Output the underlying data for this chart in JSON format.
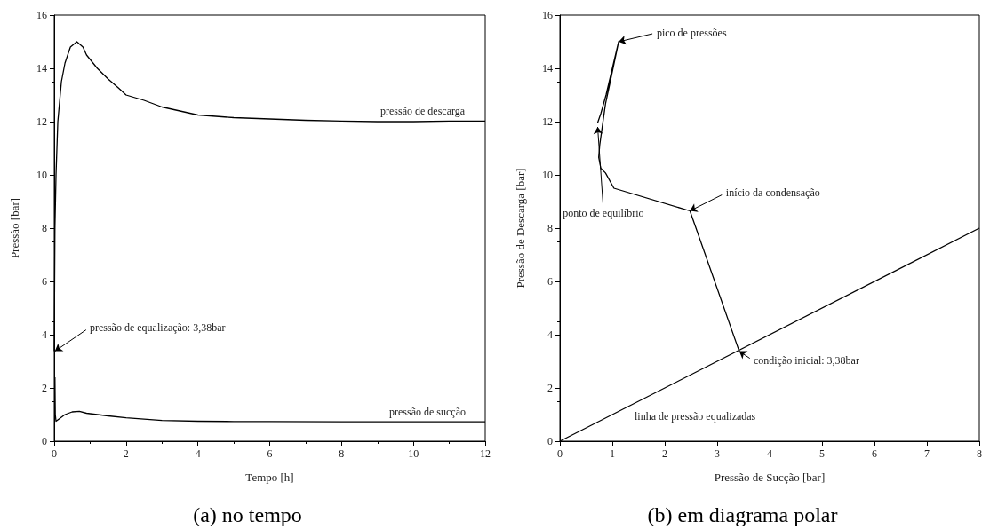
{
  "chart_data": [
    {
      "type": "line",
      "title": "(a) no tempo",
      "xlabel": "Tempo [h]",
      "ylabel": "Pressão [bar]",
      "xlim": [
        0,
        12
      ],
      "ylim": [
        0,
        16
      ],
      "xticks": [
        0,
        2,
        4,
        6,
        8,
        10,
        12
      ],
      "yticks": [
        0,
        2,
        4,
        6,
        8,
        10,
        12,
        14,
        16
      ],
      "marker": "none",
      "line_style": "solid",
      "series": [
        {
          "name": "pressão de descarga",
          "color": "#000000",
          "x": [
            0,
            0.02,
            0.05,
            0.1,
            0.2,
            0.3,
            0.45,
            0.63,
            0.8,
            0.9,
            1.2,
            1.5,
            1.8,
            2.0,
            2.5,
            3.0,
            3.5,
            4.0,
            5,
            6,
            7,
            8,
            9,
            10,
            11,
            12
          ],
          "values": [
            3.38,
            8,
            10,
            12,
            13.5,
            14.2,
            14.8,
            15.0,
            14.8,
            14.5,
            14.0,
            13.6,
            13.25,
            13.0,
            12.8,
            12.55,
            12.4,
            12.25,
            12.15,
            12.1,
            12.05,
            12.02,
            12.0,
            12.0,
            12.02,
            12.02
          ]
        },
        {
          "name": "pressão de sucção",
          "color": "#000000",
          "x": [
            0.02,
            0.03,
            0.05,
            0.15,
            0.3,
            0.5,
            0.7,
            0.9,
            1.2,
            1.5,
            2,
            2.5,
            3,
            4,
            5,
            6,
            8,
            10,
            12
          ],
          "values": [
            2.4,
            1.0,
            0.75,
            0.85,
            1.0,
            1.1,
            1.12,
            1.05,
            1.0,
            0.95,
            0.88,
            0.83,
            0.78,
            0.75,
            0.74,
            0.74,
            0.73,
            0.73,
            0.73
          ]
        }
      ],
      "annotations": [
        {
          "text": "pressão de equalização: 3,38bar",
          "x": 0.02,
          "y": 3.38
        }
      ]
    },
    {
      "type": "line",
      "title": "(b) em diagrama polar",
      "xlabel": "Pressão de Sucção [bar]",
      "ylabel": "Pressão de Descarga [bar]",
      "xlim": [
        0,
        8
      ],
      "ylim": [
        0,
        16
      ],
      "xticks": [
        0,
        1,
        2,
        3,
        4,
        5,
        6,
        7,
        8
      ],
      "yticks": [
        0,
        2,
        4,
        6,
        8,
        10,
        12,
        14,
        16
      ],
      "marker": "none",
      "line_style": "solid",
      "series": [
        {
          "name": "linha de pressão equalizadas",
          "color": "#000000",
          "x": [
            0,
            8
          ],
          "values": [
            0,
            8
          ]
        },
        {
          "color": "#000000",
          "x": [
            3.42,
            2.48,
            1.03,
            0.87,
            0.78,
            0.74,
            0.76,
            0.81,
            0.87,
            0.96,
            1.12,
            1.0,
            0.88,
            0.78,
            0.72
          ],
          "values": [
            3.38,
            8.65,
            9.5,
            10.07,
            10.25,
            10.66,
            11.13,
            11.84,
            12.67,
            13.5,
            15.0,
            14.0,
            13.0,
            12.3,
            11.96
          ]
        }
      ],
      "annotations": [
        {
          "text": "pico de pressões",
          "x": 1.12,
          "y": 15.0
        },
        {
          "text": "ponto de equilíbrio",
          "x": 0.72,
          "y": 11.8
        },
        {
          "text": "início da condensação",
          "x": 2.48,
          "y": 8.65
        },
        {
          "text": "condição inicial: 3,38bar",
          "x": 3.42,
          "y": 3.38
        }
      ]
    }
  ]
}
